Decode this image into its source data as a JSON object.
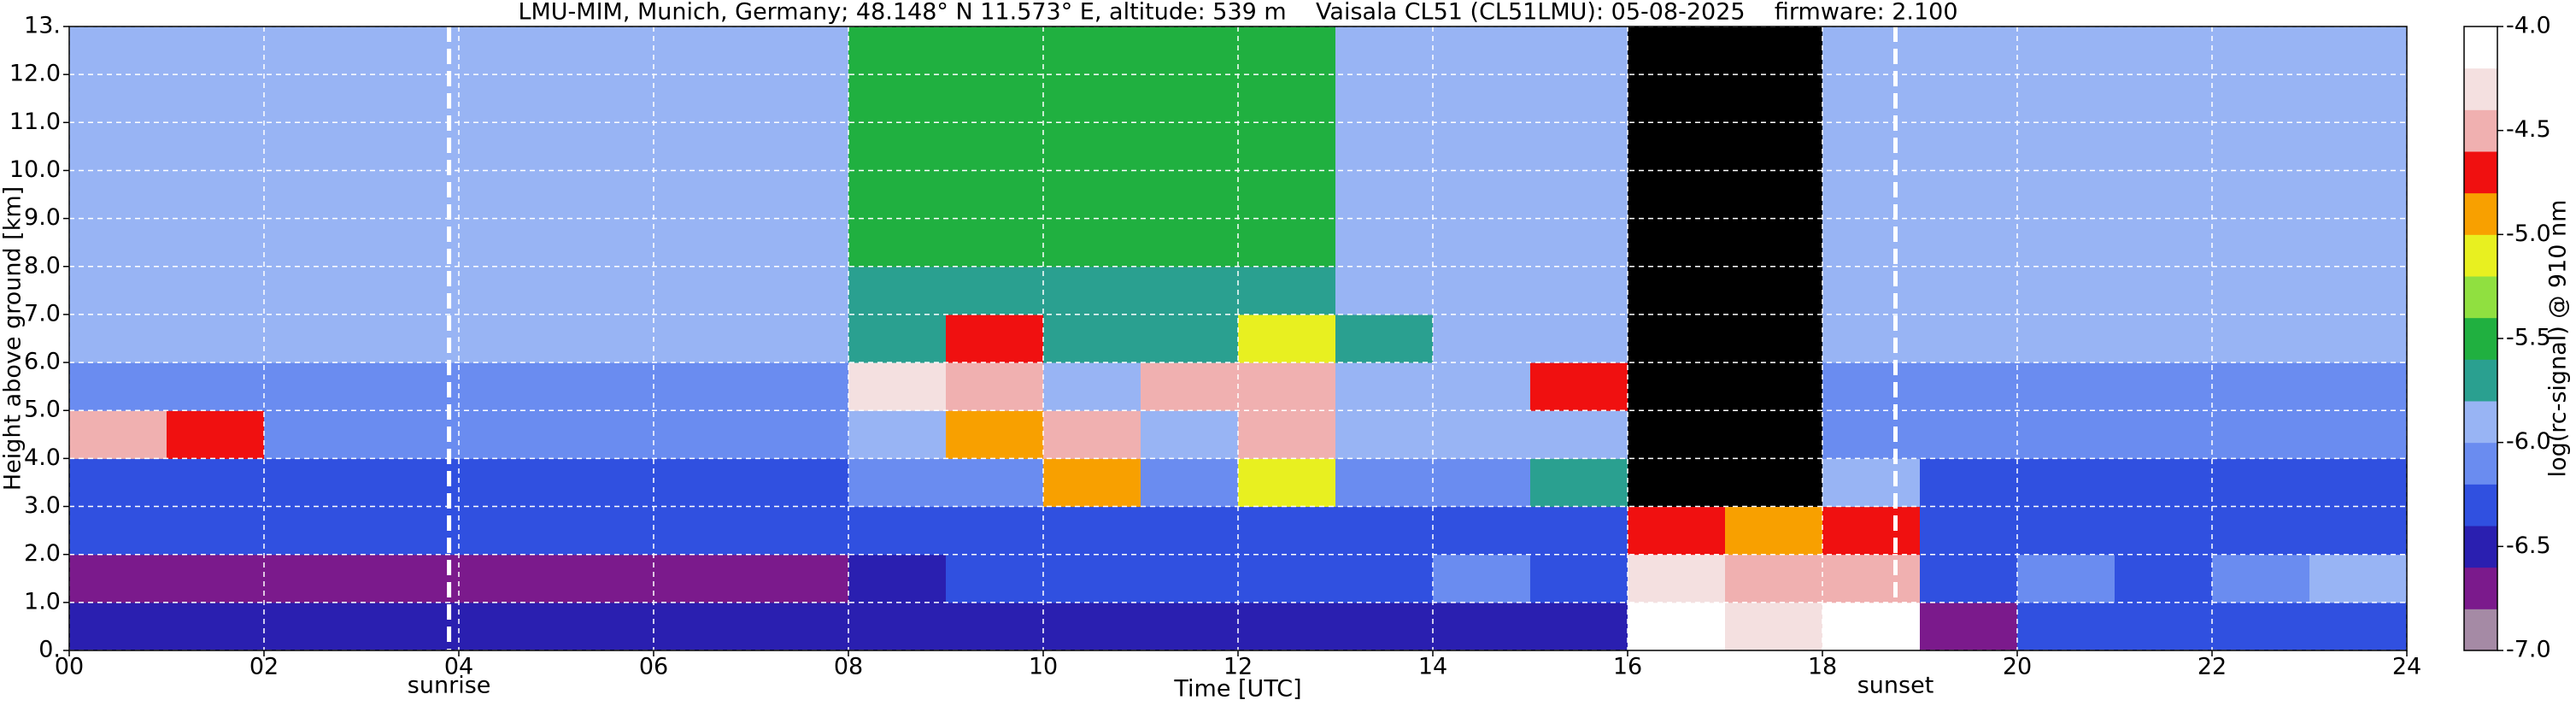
{
  "chart_data": {
    "type": "heatmap",
    "title": "LMU-MIM, Munich, Germany; 48.148° N 11.573° E, altitude: 539 m    Vaisala CL51 (CL51LMU): 05-08-2025    firmware: 2.100",
    "xlabel": "Time [UTC]",
    "ylabel": "Height above ground [km]",
    "colorbar_label": "log(rc-signal) @ 910 nm",
    "xlim": [
      0,
      24
    ],
    "ylim": [
      0,
      13
    ],
    "zlim": [
      -7,
      -4
    ],
    "xticks": [
      {
        "value": 0,
        "label": "00"
      },
      {
        "value": 2,
        "label": "02"
      },
      {
        "value": 4,
        "label": "04"
      },
      {
        "value": 6,
        "label": "06"
      },
      {
        "value": 8,
        "label": "08"
      },
      10,
      12,
      14,
      16,
      18,
      20,
      22,
      24
    ],
    "yticks": [
      {
        "value": 0,
        "label": "0."
      },
      {
        "value": 1,
        "label": "1.0"
      },
      {
        "value": 2,
        "label": "2.0"
      },
      {
        "value": 3,
        "label": "3.0"
      },
      {
        "value": 4,
        "label": "4.0"
      },
      {
        "value": 5,
        "label": "5.0"
      },
      {
        "value": 6,
        "label": "6.0"
      },
      {
        "value": 7,
        "label": "7.0"
      },
      {
        "value": 8,
        "label": "8.0"
      },
      {
        "value": 9,
        "label": "9.0"
      },
      {
        "value": 10,
        "label": "10.0"
      },
      {
        "value": 11,
        "label": "11.0"
      },
      {
        "value": 12,
        "label": "12.0"
      },
      {
        "value": 13,
        "label": "13."
      }
    ],
    "zticks": [
      {
        "value": -7,
        "label": "-7.0"
      },
      {
        "value": -6.5,
        "label": "-6.5"
      },
      {
        "value": -6,
        "label": "-6.0"
      },
      {
        "value": -5.5,
        "label": "-5.5"
      },
      {
        "value": -5,
        "label": "-5.0"
      },
      {
        "value": -4.5,
        "label": "-4.5"
      },
      {
        "value": -4,
        "label": "-4.0"
      }
    ],
    "grid": true,
    "grid_color": "#ffffff",
    "missing_color": "#000000",
    "colormap": [
      "#a58aa5",
      "#7b1a8c",
      "#2a1fb0",
      "#3050e0",
      "#6a8cf0",
      "#98b4f4",
      "#2aa090",
      "#20b040",
      "#90e040",
      "#e8f020",
      "#f8a000",
      "#f01010",
      "#f0b0b0",
      "#f4e0e0",
      "#ffffff"
    ],
    "x_bins": [
      0,
      1,
      2,
      3,
      4,
      5,
      6,
      7,
      8,
      9,
      10,
      11,
      12,
      13,
      14,
      15,
      16,
      17,
      18,
      19,
      20,
      21,
      22,
      23,
      24
    ],
    "y_bins": [
      0,
      1,
      2,
      3,
      4,
      5,
      6,
      7,
      8,
      9,
      10,
      11,
      12,
      13
    ],
    "z": [
      [
        -6.5,
        -6.5,
        -6.5,
        -6.5,
        -6.5,
        -6.5,
        -6.5,
        -6.5,
        -6.6,
        -6.6,
        -6.6,
        -6.6,
        -6.6,
        -6.6,
        -6.6,
        -6.6,
        -4.1,
        -4.3,
        -4.1,
        -6.7,
        -6.3,
        -6.3,
        -6.2,
        -6.2
      ],
      [
        -6.7,
        -6.7,
        -6.7,
        -6.7,
        -6.7,
        -6.7,
        -6.7,
        -6.7,
        -6.4,
        -6.3,
        -6.3,
        -6.3,
        -6.3,
        -6.3,
        -6.1,
        -6.3,
        -4.2,
        -4.6,
        -4.4,
        -6.2,
        -6.1,
        -6.3,
        -6.1,
        -6.0
      ],
      [
        -6.3,
        -6.3,
        -6.3,
        -6.3,
        -6.3,
        -6.3,
        -6.3,
        -6.3,
        -6.2,
        -6.2,
        -6.2,
        -6.2,
        -6.2,
        -6.2,
        -6.2,
        -6.2,
        -4.8,
        -5.0,
        -4.8,
        -6.2,
        -6.2,
        -6.2,
        -6.2,
        -6.2
      ],
      [
        -6.2,
        -6.2,
        -6.2,
        -6.2,
        -6.2,
        -6.2,
        -6.2,
        -6.2,
        -6.1,
        -6.1,
        -5.0,
        -6.1,
        -5.1,
        -6.1,
        -6.1,
        -5.8,
        null,
        null,
        -6.0,
        -6.2,
        -6.2,
        -6.2,
        -6.2,
        -6.2
      ],
      [
        -4.6,
        -4.8,
        -6.1,
        -6.1,
        -6.1,
        -6.1,
        -6.1,
        -6.1,
        -6.0,
        -4.9,
        -4.5,
        -6.0,
        -4.5,
        -6.0,
        -6.0,
        -6.0,
        null,
        null,
        -6.1,
        -6.1,
        -6.1,
        -6.1,
        -6.1,
        -6.1
      ],
      [
        -6.1,
        -6.1,
        -6.1,
        -6.1,
        -6.1,
        -6.1,
        -6.1,
        -6.1,
        -4.3,
        -4.4,
        -6.0,
        -4.6,
        -4.4,
        -5.9,
        -6.0,
        -4.7,
        null,
        null,
        -6.1,
        -6.1,
        -6.1,
        -6.1,
        -6.1,
        -6.1
      ],
      [
        -6.0,
        -6.0,
        -6.0,
        -6.0,
        -6.0,
        -6.0,
        -6.0,
        -6.0,
        -5.8,
        -4.8,
        -5.8,
        -5.8,
        -5.2,
        -5.8,
        -6.0,
        -6.0,
        null,
        null,
        -6.0,
        -6.0,
        -6.0,
        -6.0,
        -6.0,
        -6.0
      ],
      [
        -6.0,
        -6.0,
        -6.0,
        -6.0,
        -6.0,
        -6.0,
        -6.0,
        -6.0,
        -5.7,
        -5.7,
        -5.7,
        -5.7,
        -5.7,
        -5.9,
        -6.0,
        -6.0,
        null,
        null,
        -6.0,
        -6.0,
        -6.0,
        -6.0,
        -6.0,
        -6.0
      ],
      [
        -6.0,
        -6.0,
        -6.0,
        -6.0,
        -6.0,
        -6.0,
        -6.0,
        -6.0,
        -5.6,
        -5.6,
        -5.6,
        -5.6,
        -5.6,
        -5.9,
        -6.0,
        -6.0,
        null,
        null,
        -6.0,
        -6.0,
        -6.0,
        -6.0,
        -6.0,
        -6.0
      ],
      [
        -6.0,
        -6.0,
        -6.0,
        -6.0,
        -6.0,
        -6.0,
        -6.0,
        -6.0,
        -5.6,
        -5.6,
        -5.6,
        -5.6,
        -5.6,
        -5.9,
        -6.0,
        -6.0,
        null,
        null,
        -6.0,
        -6.0,
        -6.0,
        -6.0,
        -6.0,
        -6.0
      ],
      [
        -6.0,
        -6.0,
        -6.0,
        -6.0,
        -6.0,
        -6.0,
        -6.0,
        -6.0,
        -5.6,
        -5.6,
        -5.6,
        -5.6,
        -5.6,
        -5.9,
        -6.0,
        -6.0,
        null,
        null,
        -6.0,
        -6.0,
        -6.0,
        -6.0,
        -6.0,
        -6.0
      ],
      [
        -6.0,
        -6.0,
        -6.0,
        -6.0,
        -6.0,
        -6.0,
        -6.0,
        -6.0,
        -5.5,
        -5.5,
        -5.5,
        -5.5,
        -5.5,
        -5.9,
        -6.0,
        -6.0,
        null,
        null,
        -6.0,
        -6.0,
        -6.0,
        -6.0,
        -6.0,
        -6.0
      ],
      [
        -6.0,
        -6.0,
        -6.0,
        -6.0,
        -6.0,
        -6.0,
        -6.0,
        -6.0,
        -5.5,
        -5.5,
        -5.5,
        -5.5,
        -5.5,
        -5.9,
        -6.0,
        -6.0,
        null,
        null,
        -6.0,
        -6.0,
        -6.0,
        -6.0,
        -6.0,
        -6.0
      ]
    ],
    "annotations": [
      {
        "text": "sunrise",
        "x": 3.9
      },
      {
        "text": "sunset",
        "x": 18.75
      }
    ]
  }
}
